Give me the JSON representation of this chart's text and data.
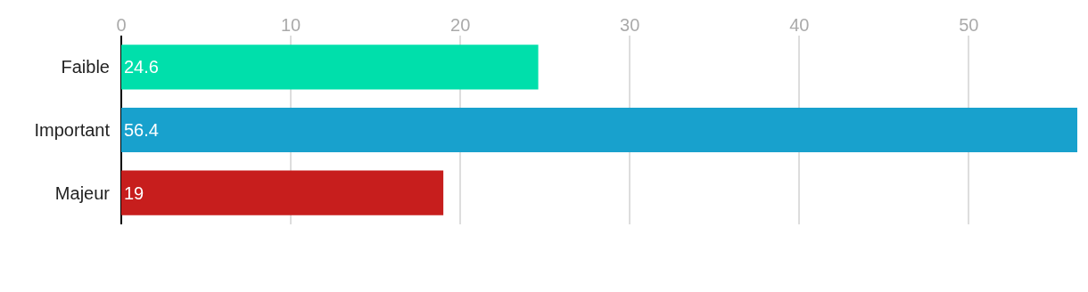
{
  "chart_data": {
    "type": "bar",
    "orientation": "horizontal",
    "categories": [
      "Faible",
      "Important",
      "Majeur"
    ],
    "values": [
      24.6,
      56.4,
      19
    ],
    "colors": [
      "#00dfab",
      "#18a1cd",
      "#c71e1d"
    ],
    "xlim": [
      0,
      56.4
    ],
    "xticks": [
      0,
      10,
      20,
      30,
      40,
      50
    ],
    "grid": "x",
    "data_labels": true
  }
}
